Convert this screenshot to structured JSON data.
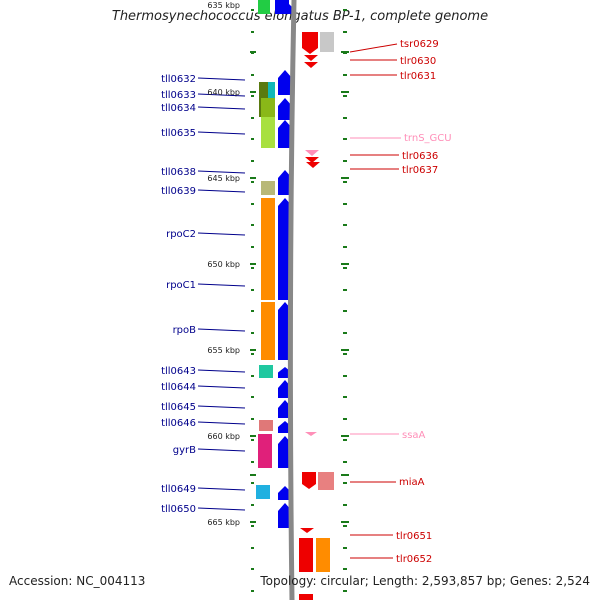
{
  "title": "Thermosynechococcus elongatus BP-1, complete genome",
  "footer": {
    "accession": "Accession: NC_004113",
    "summary": "Topology: circular; Length: 2,593,857 bp; Genes: 2,524"
  },
  "colors": {
    "forward_cds": "#0000ee",
    "reverse_cds": "#ee0000",
    "forward_label": "#00008b",
    "reverse_label": "#cc0000",
    "rna_label": "#ff8fb8",
    "backbone": "#888888",
    "tick": "#1a7a1a"
  },
  "kbp_labels": [
    {
      "kbp": 635,
      "text": "635 kbp"
    },
    {
      "kbp": 640,
      "text": "640 kbp"
    },
    {
      "kbp": 645,
      "text": "645 kbp"
    },
    {
      "kbp": 650,
      "text": "650 kbp"
    },
    {
      "kbp": 655,
      "text": "655 kbp"
    },
    {
      "kbp": 660,
      "text": "660 kbp"
    },
    {
      "kbp": 665,
      "text": "665 kbp"
    }
  ],
  "left_genes": [
    {
      "name": "tll0632",
      "color": "#10b8b8"
    },
    {
      "name": "tll0633",
      "color": "#5a7a10"
    },
    {
      "name": "tll0634",
      "color": "#8ab818"
    },
    {
      "name": "tll0635",
      "color": "#a8e040"
    },
    {
      "name": "tll0638",
      "color": "#b8b878"
    },
    {
      "name": "tll0639",
      "color": "#b8b878"
    },
    {
      "name": "rpoC2",
      "color": "#ff8c00"
    },
    {
      "name": "rpoC1",
      "color": "#ff8c00"
    },
    {
      "name": "rpoB",
      "color": "#ff8c00"
    },
    {
      "name": "tll0643",
      "color": "#20c8a0"
    },
    {
      "name": "tll0644",
      "color": "#e07878"
    },
    {
      "name": "tll0645",
      "color": "#e07878"
    },
    {
      "name": "tll0646",
      "color": "#e07878"
    },
    {
      "name": "gyrB",
      "color": "#e0207a"
    },
    {
      "name": "tll0649",
      "color": "#20b0e0"
    },
    {
      "name": "tll0650",
      "color": "#20b0e0"
    }
  ],
  "right_genes": [
    {
      "name": "tsr0629",
      "type": "cds"
    },
    {
      "name": "tlr0630",
      "type": "cds"
    },
    {
      "name": "tlr0631",
      "type": "cds"
    },
    {
      "name": "trnS_GCU",
      "type": "rna"
    },
    {
      "name": "tlr0636",
      "type": "cds"
    },
    {
      "name": "tlr0637",
      "type": "cds"
    },
    {
      "name": "ssaA",
      "type": "rna"
    },
    {
      "name": "miaA",
      "type": "cds"
    },
    {
      "name": "tlr0651",
      "type": "cds"
    },
    {
      "name": "tlr0652",
      "type": "cds"
    }
  ]
}
